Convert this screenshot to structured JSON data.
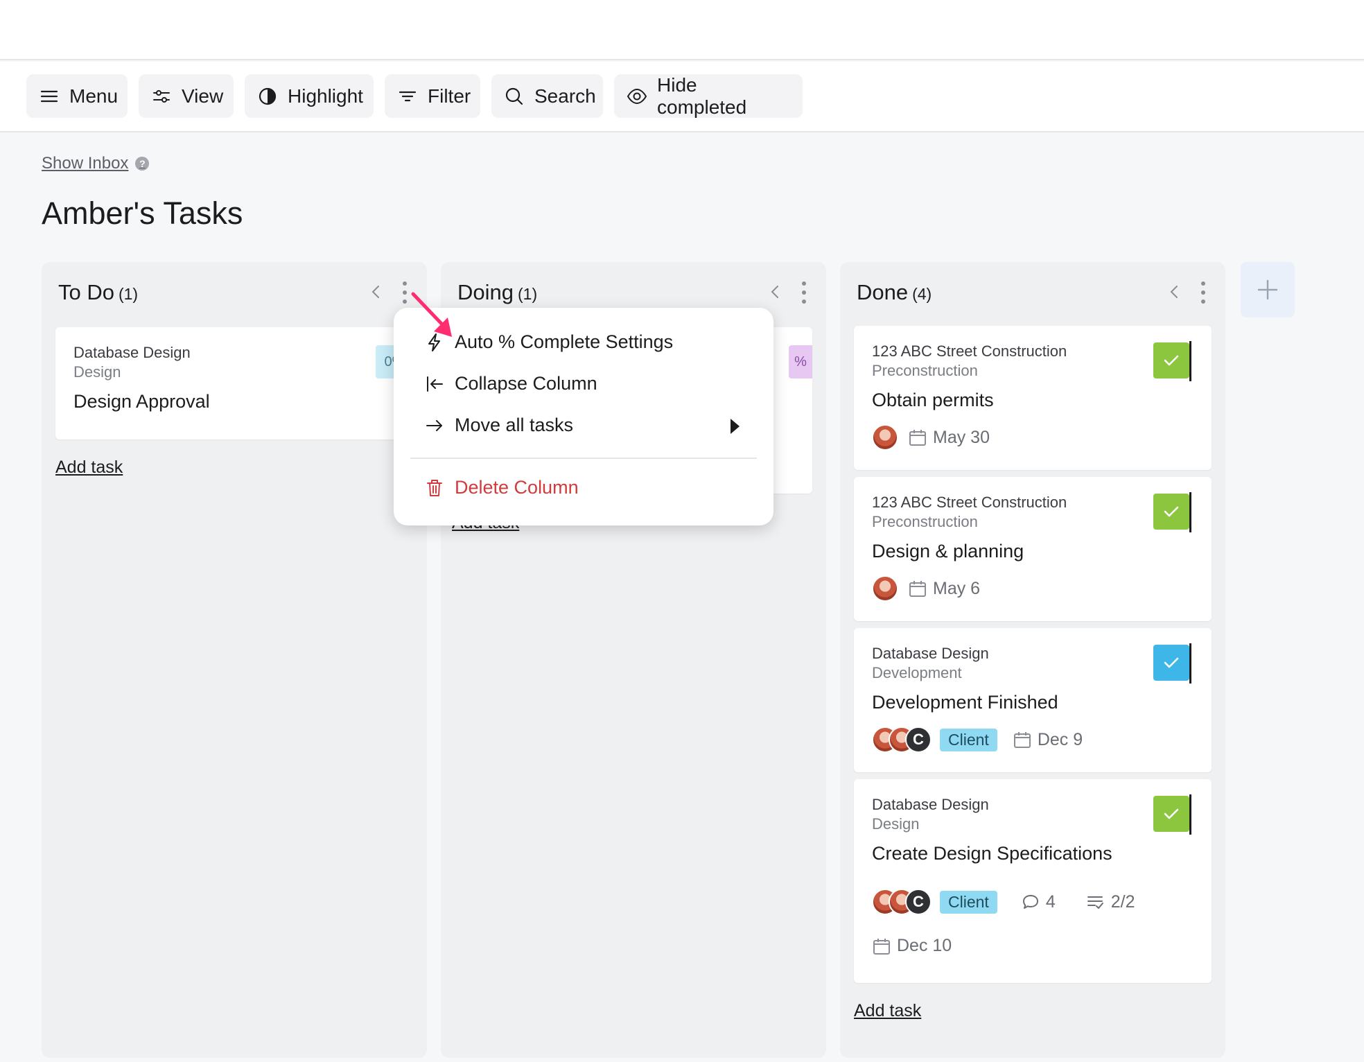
{
  "toolbar": {
    "menu": "Menu",
    "view": "View",
    "highlight": "Highlight",
    "filter": "Filter",
    "search": "Search",
    "hide_completed": "Hide completed"
  },
  "show_inbox": "Show Inbox",
  "help_glyph": "?",
  "page_title": "Amber's Tasks",
  "columns": [
    {
      "title": "To Do",
      "count": "(1)",
      "cards": [
        {
          "project": "Database Design",
          "section": "Design",
          "title": "Design Approval",
          "progress": "0%"
        }
      ],
      "add_task": "Add task"
    },
    {
      "title": "Doing",
      "count": "(1)",
      "cards": [
        {
          "progress_fragment": "%"
        }
      ],
      "add_task": "Add task"
    },
    {
      "title": "Done",
      "count": "(4)",
      "cards": [
        {
          "project": "123 ABC Street Construction",
          "section": "Preconstruction",
          "title": "Obtain permits",
          "due": "May 30",
          "check_color": "#8cc63f"
        },
        {
          "project": "123 ABC Street Construction",
          "section": "Preconstruction",
          "title": "Design & planning",
          "due": "May 6",
          "check_color": "#8cc63f"
        },
        {
          "project": "Database Design",
          "section": "Development",
          "title": "Development Finished",
          "avatar_letter": "C",
          "tag": "Client",
          "due": "Dec 9",
          "check_color": "#3fb6e8"
        },
        {
          "project": "Database Design",
          "section": "Design",
          "title": "Create Design Specifications",
          "avatar_letter": "C",
          "tag": "Client",
          "comments": "4",
          "subtasks": "2/2",
          "due": "Dec 10",
          "check_color": "#8cc63f"
        }
      ],
      "add_task": "Add task"
    }
  ],
  "context_menu": {
    "auto_complete": "Auto % Complete Settings",
    "collapse": "Collapse Column",
    "move_all": "Move all tasks",
    "delete": "Delete Column"
  },
  "colors": {
    "accent_pointer": "#ff2d6f",
    "danger": "#d23b3b",
    "check_green": "#8cc63f",
    "check_blue": "#3fb6e8",
    "client_tag": "#8fd9f2"
  }
}
